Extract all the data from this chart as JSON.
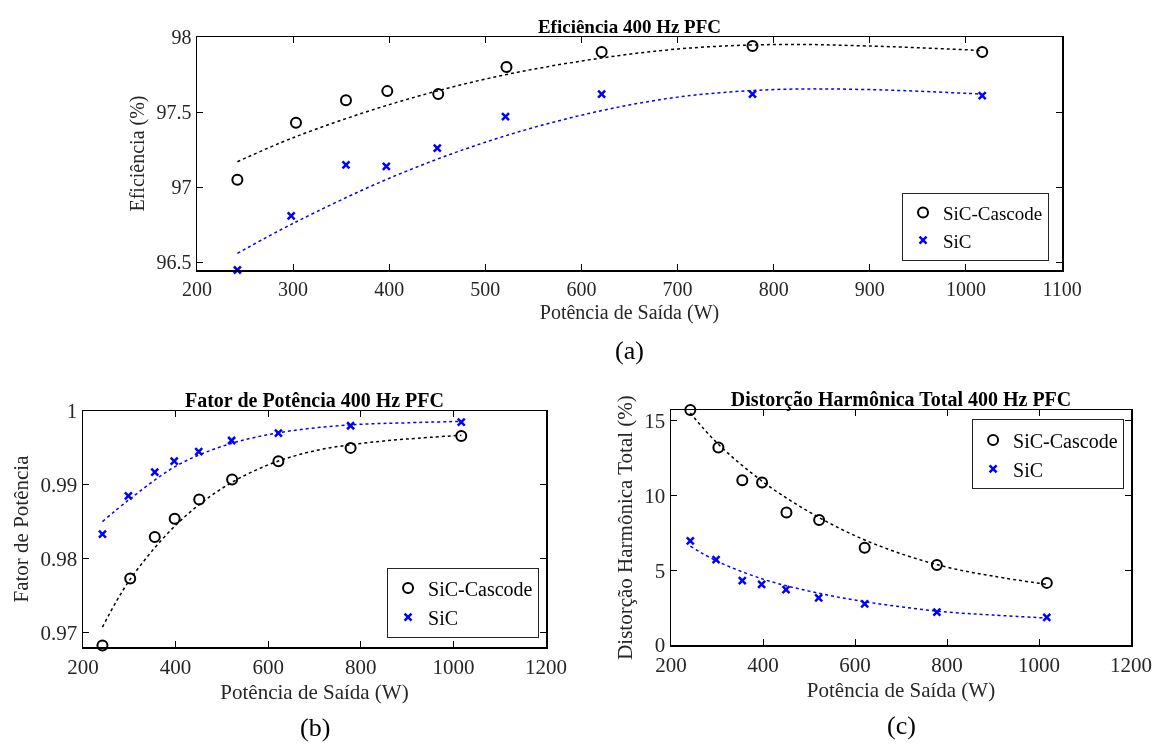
{
  "chart_data": [
    {
      "type": "scatter",
      "title": "Eficiência 400 Hz PFC",
      "xlabel": "Potência de Saída (W)",
      "ylabel": "Eficiência (%)",
      "annotations": [
        "(a)"
      ],
      "xlim": [
        200,
        1100
      ],
      "xticks": [
        200,
        300,
        400,
        500,
        600,
        700,
        800,
        900,
        1000,
        1100
      ],
      "ylim": [
        96.45,
        98
      ],
      "yticks": [
        96.5,
        97,
        97.5,
        98
      ],
      "grid": false,
      "legend": "bottom right",
      "series": [
        {
          "name": "SiC-Cascode",
          "marker": "circle",
          "color": "#000000",
          "x": [
            242,
            303,
            355,
            398,
            451,
            522,
            621,
            778,
            1017
          ],
          "values": [
            97.05,
            97.43,
            97.58,
            97.64,
            97.62,
            97.8,
            97.9,
            97.94,
            97.9
          ]
        },
        {
          "name": "SiC",
          "marker": "cross",
          "color": "#0000ff",
          "x": [
            242,
            298,
            355,
            397,
            450,
            521,
            621,
            778,
            1017
          ],
          "values": [
            96.45,
            96.81,
            97.15,
            97.14,
            97.26,
            97.47,
            97.62,
            97.62,
            97.61
          ]
        },
        {
          "type": "line",
          "marker": "none",
          "line_style": "dotted",
          "color": "#000000",
          "x": [
            242,
            300,
            400,
            500,
            600,
            700,
            800,
            900,
            1017
          ],
          "values": [
            97.17,
            97.33,
            97.55,
            97.72,
            97.84,
            97.92,
            97.95,
            97.94,
            97.91
          ]
        },
        {
          "type": "line",
          "marker": "none",
          "line_style": "dotted",
          "color": "#0000ff",
          "x": [
            242,
            300,
            400,
            500,
            600,
            700,
            800,
            900,
            1017
          ],
          "values": [
            96.56,
            96.76,
            97.06,
            97.3,
            97.48,
            97.6,
            97.65,
            97.65,
            97.62
          ]
        }
      ]
    },
    {
      "type": "scatter",
      "title": "Fator de Potência 400 Hz PFC",
      "xlabel": "Potência de Saída (W)",
      "ylabel": "Fator de Potência",
      "annotations": [
        "(b)"
      ],
      "xlim": [
        200,
        1200
      ],
      "xticks": [
        200,
        400,
        600,
        800,
        1000,
        1200
      ],
      "ylim": [
        0.968,
        1
      ],
      "yticks": [
        0.97,
        0.98,
        0.99,
        1
      ],
      "grid": false,
      "legend": "bottom right",
      "series": [
        {
          "name": "SiC-Cascode",
          "marker": "circle",
          "color": "#000000",
          "x": [
            242,
            302,
            355,
            398,
            451,
            522,
            622,
            778,
            1017
          ],
          "values": [
            0.9682,
            0.9773,
            0.9829,
            0.9854,
            0.988,
            0.9907,
            0.9932,
            0.995,
            0.9966
          ]
        },
        {
          "name": "SiC",
          "marker": "cross",
          "color": "#0000ff",
          "x": [
            242,
            298,
            355,
            397,
            450,
            521,
            622,
            778,
            1017
          ],
          "values": [
            0.9833,
            0.9885,
            0.9917,
            0.9932,
            0.9945,
            0.996,
            0.997,
            0.998,
            0.9985
          ]
        },
        {
          "type": "line",
          "marker": "none",
          "line_style": "dotted",
          "color": "#000000",
          "x": [
            242,
            300,
            400,
            500,
            600,
            700,
            800,
            900,
            1017
          ],
          "values": [
            0.9707,
            0.977,
            0.9845,
            0.9895,
            0.9927,
            0.9946,
            0.9956,
            0.9962,
            0.9967
          ]
        },
        {
          "type": "line",
          "marker": "none",
          "line_style": "dotted",
          "color": "#0000ff",
          "x": [
            242,
            300,
            400,
            500,
            600,
            700,
            800,
            900,
            1017
          ],
          "values": [
            0.985,
            0.988,
            0.9925,
            0.9952,
            0.9968,
            0.9977,
            0.9982,
            0.9984,
            0.9986
          ]
        }
      ]
    },
    {
      "type": "scatter",
      "title": "Distorção Harmônica Total 400 Hz PFC",
      "xlabel": "Potência de Saída (W)",
      "ylabel": "Distorção Harmônica Total (%)",
      "annotations": [
        "(c)"
      ],
      "xlim": [
        200,
        1200
      ],
      "xticks": [
        200,
        400,
        600,
        800,
        1000,
        1200
      ],
      "ylim": [
        0,
        15.7
      ],
      "yticks": [
        0,
        5,
        10,
        15
      ],
      "grid": false,
      "legend": "top right",
      "series": [
        {
          "name": "SiC-Cascode",
          "marker": "circle",
          "color": "#000000",
          "x": [
            242,
            303,
            355,
            398,
            451,
            522,
            621,
            778,
            1017
          ],
          "values": [
            15.7,
            13.2,
            11,
            10.85,
            8.85,
            8.35,
            6.5,
            5.35,
            4.15
          ]
        },
        {
          "name": "SiC",
          "marker": "cross",
          "color": "#0000ff",
          "x": [
            242,
            298,
            355,
            397,
            450,
            521,
            621,
            778,
            1017
          ],
          "values": [
            6.95,
            5.7,
            4.3,
            4.05,
            3.7,
            3.15,
            2.75,
            2.2,
            1.85
          ]
        },
        {
          "type": "line",
          "marker": "none",
          "line_style": "dotted",
          "color": "#000000",
          "x": [
            242,
            300,
            400,
            500,
            600,
            700,
            800,
            900,
            1017
          ],
          "values": [
            15.5,
            13.5,
            10.9,
            8.9,
            7.3,
            6.1,
            5.2,
            4.6,
            4.05
          ]
        },
        {
          "type": "line",
          "marker": "none",
          "line_style": "dotted",
          "color": "#0000ff",
          "x": [
            242,
            300,
            400,
            500,
            600,
            700,
            800,
            900,
            1017
          ],
          "values": [
            6.6,
            5.6,
            4.4,
            3.6,
            3,
            2.55,
            2.2,
            2,
            1.8
          ]
        }
      ]
    }
  ]
}
